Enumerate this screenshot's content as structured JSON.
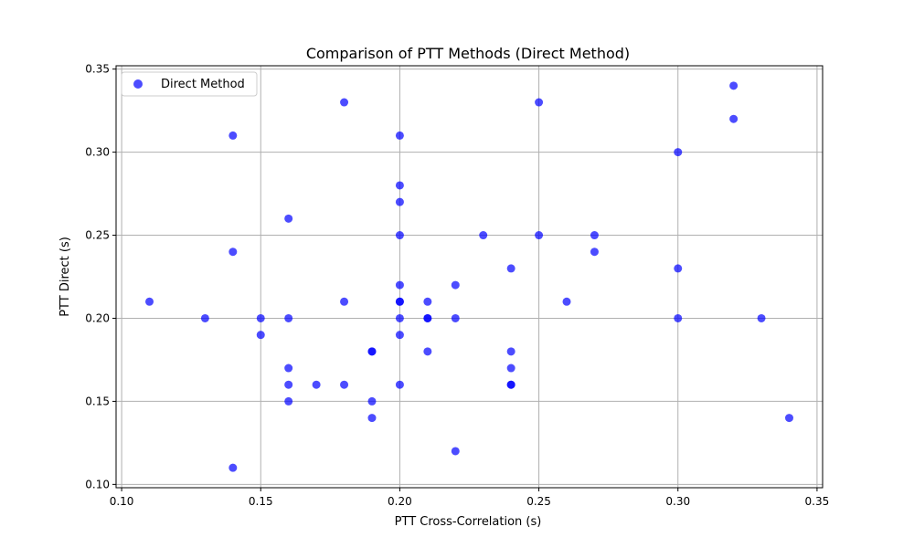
{
  "chart_data": {
    "type": "scatter",
    "title": "Comparison of PTT Methods (Direct Method)",
    "xlabel": "PTT Cross-Correlation (s)",
    "ylabel": "PTT Direct (s)",
    "xlim": [
      0.098,
      0.352
    ],
    "ylim": [
      0.098,
      0.352
    ],
    "xticks": [
      0.1,
      0.15,
      0.2,
      0.25,
      0.3,
      0.35
    ],
    "yticks": [
      0.1,
      0.15,
      0.2,
      0.25,
      0.3,
      0.35
    ],
    "xtick_labels": [
      "0.10",
      "0.15",
      "0.20",
      "0.25",
      "0.30",
      "0.35"
    ],
    "ytick_labels": [
      "0.10",
      "0.15",
      "0.20",
      "0.25",
      "0.30",
      "0.35"
    ],
    "grid": true,
    "legend_position": "top-left",
    "series": [
      {
        "name": "Direct Method",
        "color": "#0000ff",
        "points": [
          [
            0.11,
            0.21
          ],
          [
            0.13,
            0.2
          ],
          [
            0.14,
            0.31
          ],
          [
            0.14,
            0.24
          ],
          [
            0.14,
            0.11
          ],
          [
            0.15,
            0.2
          ],
          [
            0.15,
            0.19
          ],
          [
            0.16,
            0.26
          ],
          [
            0.16,
            0.2
          ],
          [
            0.16,
            0.17
          ],
          [
            0.16,
            0.16
          ],
          [
            0.16,
            0.15
          ],
          [
            0.17,
            0.16
          ],
          [
            0.18,
            0.33
          ],
          [
            0.18,
            0.21
          ],
          [
            0.18,
            0.16
          ],
          [
            0.19,
            0.18
          ],
          [
            0.19,
            0.18
          ],
          [
            0.19,
            0.15
          ],
          [
            0.19,
            0.14
          ],
          [
            0.2,
            0.31
          ],
          [
            0.2,
            0.28
          ],
          [
            0.2,
            0.27
          ],
          [
            0.2,
            0.25
          ],
          [
            0.2,
            0.22
          ],
          [
            0.2,
            0.21
          ],
          [
            0.2,
            0.21
          ],
          [
            0.2,
            0.2
          ],
          [
            0.2,
            0.19
          ],
          [
            0.2,
            0.16
          ],
          [
            0.21,
            0.21
          ],
          [
            0.21,
            0.2
          ],
          [
            0.21,
            0.2
          ],
          [
            0.21,
            0.18
          ],
          [
            0.22,
            0.22
          ],
          [
            0.22,
            0.2
          ],
          [
            0.22,
            0.12
          ],
          [
            0.23,
            0.25
          ],
          [
            0.24,
            0.23
          ],
          [
            0.24,
            0.18
          ],
          [
            0.24,
            0.17
          ],
          [
            0.24,
            0.16
          ],
          [
            0.24,
            0.16
          ],
          [
            0.25,
            0.33
          ],
          [
            0.25,
            0.25
          ],
          [
            0.26,
            0.21
          ],
          [
            0.27,
            0.25
          ],
          [
            0.27,
            0.24
          ],
          [
            0.3,
            0.3
          ],
          [
            0.3,
            0.23
          ],
          [
            0.3,
            0.2
          ],
          [
            0.32,
            0.34
          ],
          [
            0.32,
            0.32
          ],
          [
            0.33,
            0.2
          ],
          [
            0.34,
            0.14
          ]
        ]
      }
    ]
  }
}
